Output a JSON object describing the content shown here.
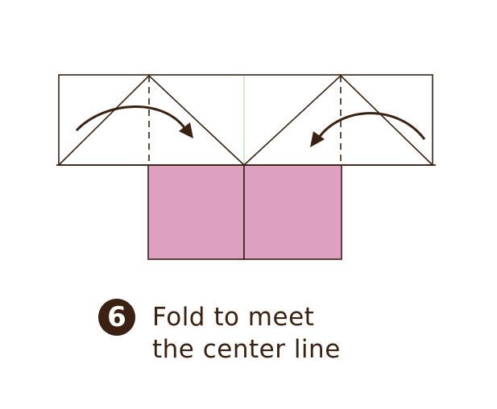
{
  "step": {
    "number": "6",
    "instruction_line1": "Fold to meet",
    "instruction_line2": "the center line"
  },
  "colors": {
    "line": "#3a2112",
    "paper_pink": "#dea0c0",
    "center_guide": "#bfe0c0",
    "badge_bg": "#3a2112",
    "badge_text": "#ffffff"
  },
  "icons": [
    "fold-arrow-left-icon",
    "fold-arrow-right-icon"
  ]
}
